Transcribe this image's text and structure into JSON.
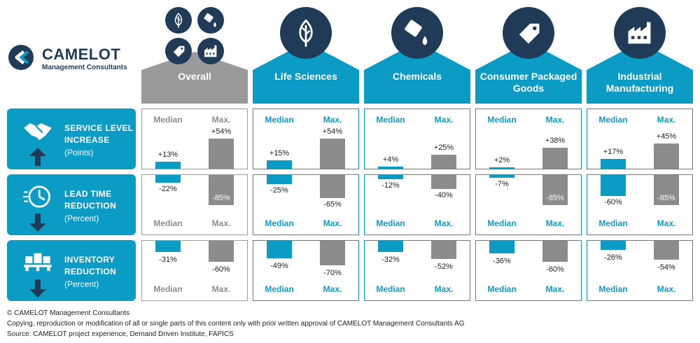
{
  "logo": {
    "name": "CAMELOT",
    "subtitle": "Management Consultants"
  },
  "colors": {
    "blue": "#0b9cc6",
    "navy": "#1f3b57",
    "gray": "#8c8c8c",
    "gray_header": "#9a9a9a"
  },
  "column_labels": {
    "median": "Median",
    "max": "Max."
  },
  "chart_data": {
    "type": "bar",
    "categories": [
      "Overall",
      "Life Sciences",
      "Chemicals",
      "Consumer Packaged Goods",
      "Industrial Manufacturing"
    ],
    "icons": [
      "leaf-icon",
      "leaf-icon",
      "chemical-pour-icon",
      "price-tag-icon",
      "factory-icon"
    ],
    "overall_icons": [
      "leaf-icon",
      "chemical-pour-icon",
      "price-tag-icon",
      "factory-icon"
    ],
    "metrics": [
      {
        "key": "service",
        "title_lines": [
          "SERVICE LEVEL",
          "INCREASE"
        ],
        "unit": "(Points)",
        "icon": "handshake-icon",
        "arrow": "up",
        "median": [
          13,
          15,
          4,
          2,
          17
        ],
        "max": [
          54,
          54,
          25,
          38,
          45
        ],
        "median_labels": [
          "+13%",
          "+15%",
          "+4%",
          "+2%",
          "+17%"
        ],
        "max_labels": [
          "+54%",
          "+54%",
          "+25%",
          "+38%",
          "+45%"
        ]
      },
      {
        "key": "leadtime",
        "title_lines": [
          "LEAD TIME",
          "REDUCTION"
        ],
        "unit": "(Percent)",
        "icon": "clock-icon",
        "arrow": "down",
        "median": [
          -22,
          -25,
          -12,
          -7,
          -60
        ],
        "max": [
          -85,
          -65,
          -40,
          -85,
          -85
        ],
        "median_labels": [
          "-22%",
          "-25%",
          "-12%",
          "-7%",
          "-60%"
        ],
        "max_labels": [
          "-85%",
          "-65%",
          "-40%",
          "-85%",
          "-85%"
        ]
      },
      {
        "key": "inventory",
        "title_lines": [
          "INVENTORY",
          "REDUCTION"
        ],
        "unit": "(Percent)",
        "icon": "pallet-boxes-icon",
        "arrow": "down",
        "median": [
          -31,
          -49,
          -32,
          -36,
          -26
        ],
        "max": [
          -60,
          -70,
          -52,
          -60,
          -54
        ],
        "median_labels": [
          "-31%",
          "-49%",
          "-32%",
          "-36%",
          "-26%"
        ],
        "max_labels": [
          "-60%",
          "-70%",
          "-52%",
          "-60%",
          "-54%"
        ]
      }
    ]
  },
  "footer": {
    "copyright": "© CAMELOT Management Consultants",
    "notice": "Copying, reproduction or modification of all or single parts of this content only with prior written approval of CAMELOT Management Consultants AG",
    "source": "Source: CAMELOT project experience, Demand Driven Institute, FAPICS"
  }
}
